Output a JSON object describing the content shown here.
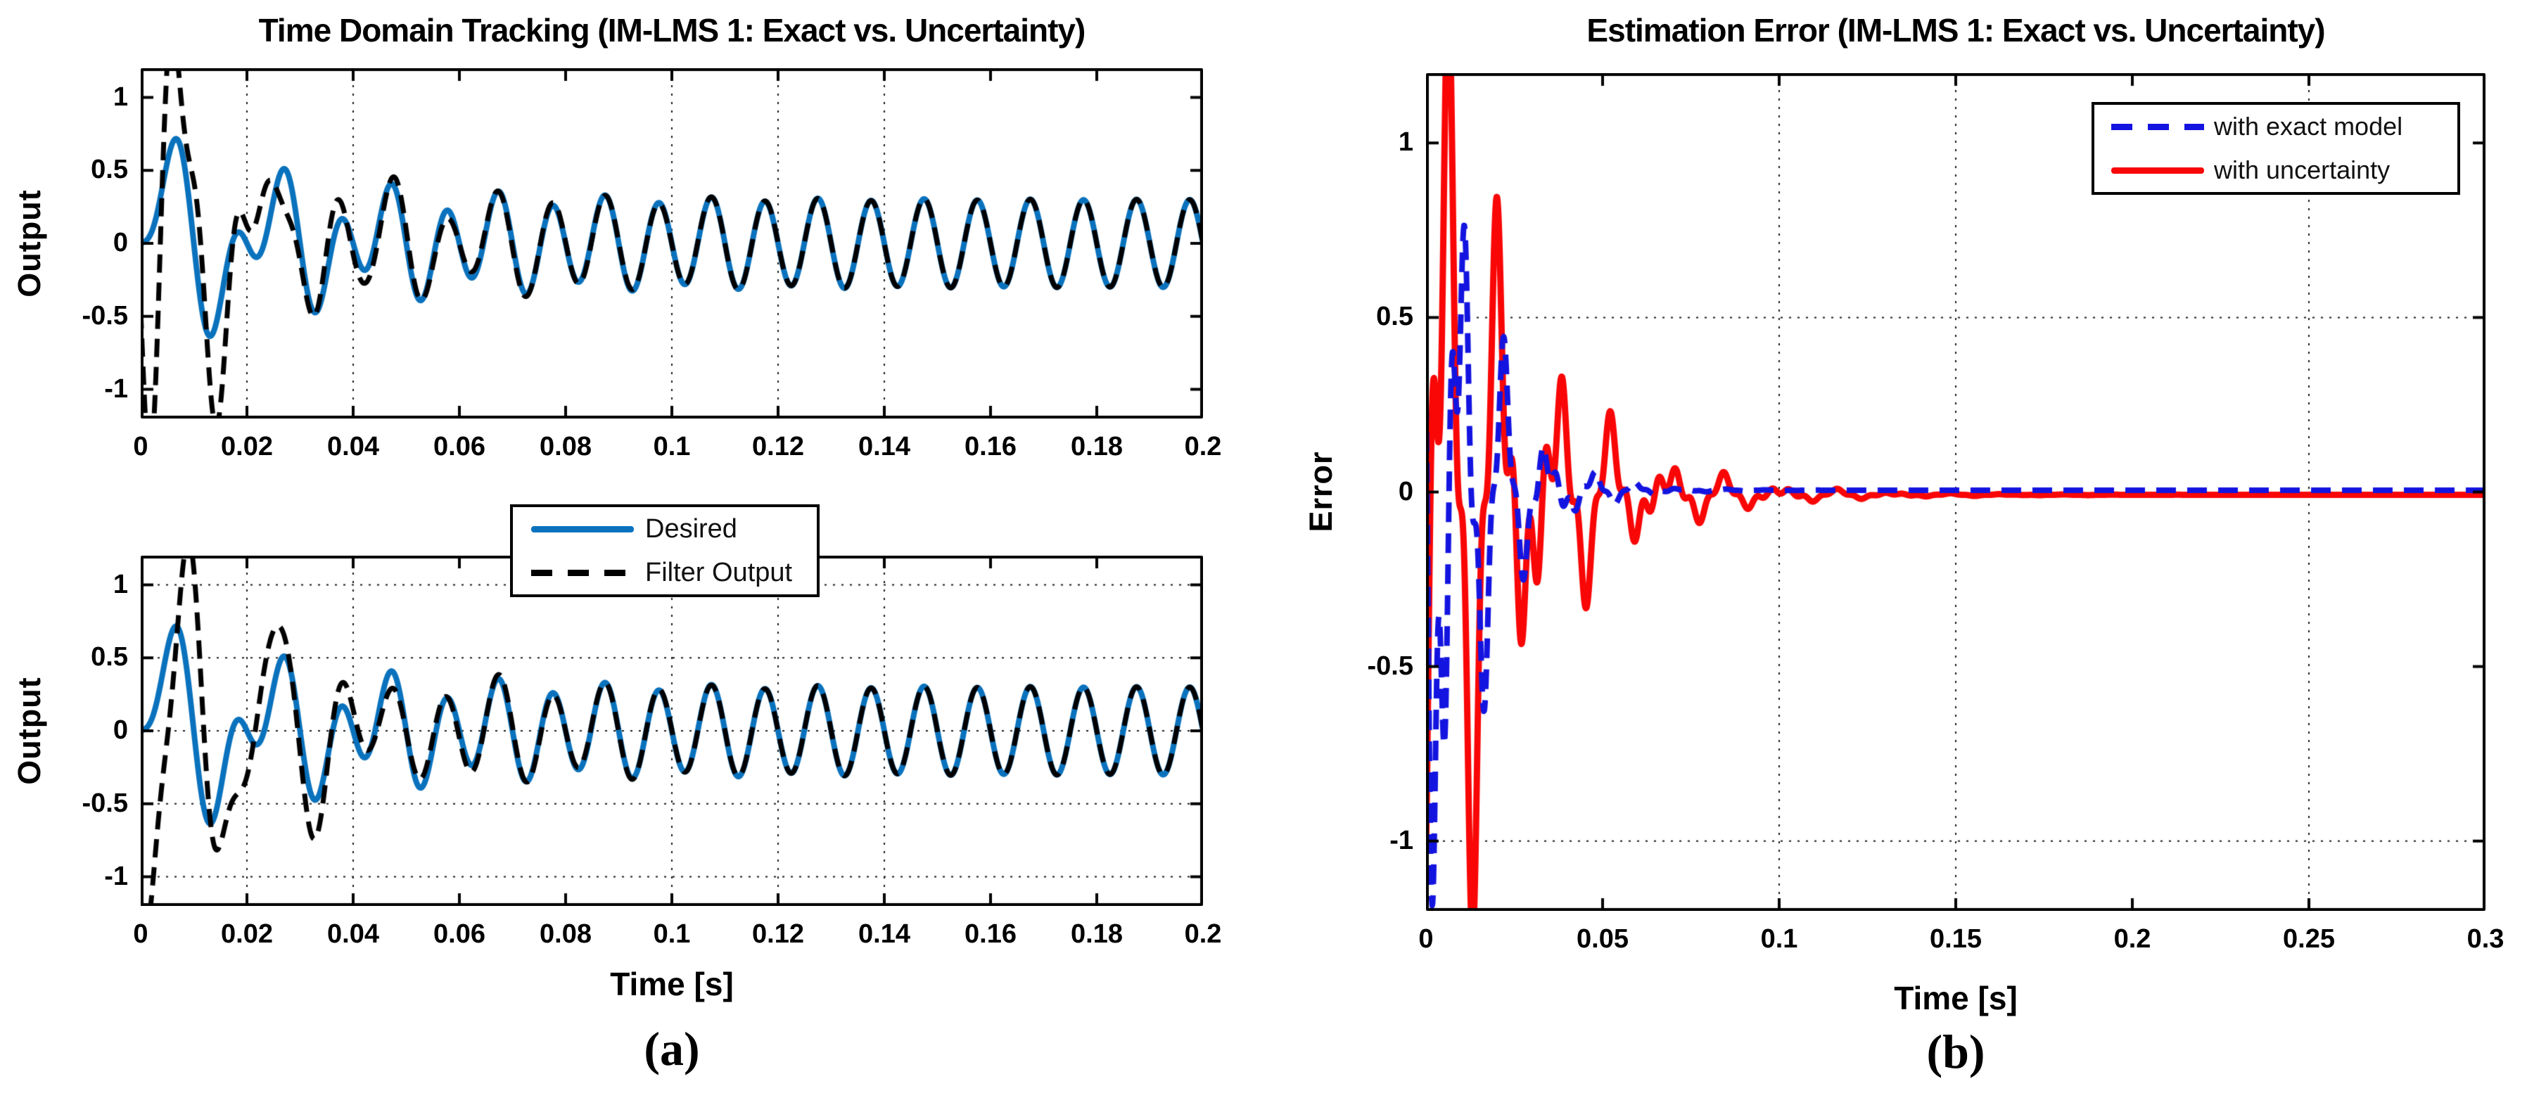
{
  "panel_a": {
    "title": "Time Domain Tracking (IM-LMS 1: Exact vs. Uncertainty)",
    "ylabel": "Output",
    "xlabel": "Time [s]",
    "caption": "(a)",
    "legend": {
      "items": [
        {
          "label": "Desired",
          "color": "#0A72BD",
          "line_style": "solid"
        },
        {
          "label": "Filter Output",
          "color": "#000000",
          "line_style": "dashed"
        }
      ]
    }
  },
  "panel_b": {
    "title": "Estimation Error (IM-LMS 1: Exact vs. Uncertainty)",
    "ylabel": "Error",
    "xlabel": "Time [s]",
    "caption": "(b)",
    "legend": {
      "items": [
        {
          "label": "with exact model",
          "color": "#1414E0",
          "line_style": "dashed"
        },
        {
          "label": "with uncertainty",
          "color": "#F90606",
          "line_style": "solid"
        }
      ]
    }
  },
  "chart_data": [
    {
      "id": "a_top",
      "type": "line",
      "title": "Time Domain Tracking (IM-LMS 1: Exact vs. Uncertainty)",
      "xlabel": "",
      "ylabel": "Output",
      "xlim": [
        0,
        0.2
      ],
      "ylim": [
        -1.2,
        1.2
      ],
      "xticks": [
        {
          "v": 0,
          "label": "0"
        },
        {
          "v": 0.02,
          "label": "0.02"
        },
        {
          "v": 0.04,
          "label": "0.04"
        },
        {
          "v": 0.06,
          "label": "0.06"
        },
        {
          "v": 0.08,
          "label": "0.08"
        },
        {
          "v": 0.1,
          "label": "0.1"
        },
        {
          "v": 0.12,
          "label": "0.12"
        },
        {
          "v": 0.14,
          "label": "0.14"
        },
        {
          "v": 0.16,
          "label": "0.16"
        },
        {
          "v": 0.18,
          "label": "0.18"
        },
        {
          "v": 0.2,
          "label": "0.2"
        }
      ],
      "yticks": [
        {
          "v": 1,
          "label": "1"
        },
        {
          "v": 0.5,
          "label": "0.5"
        },
        {
          "v": 0,
          "label": "0"
        },
        {
          "v": -0.5,
          "label": "-0.5"
        },
        {
          "v": -1,
          "label": "-1"
        }
      ],
      "grid": {
        "vertical_x": [
          0.02,
          0.04,
          0.1,
          0.12,
          0.14
        ],
        "horizontal_y": []
      },
      "legend_position": "none",
      "series": [
        {
          "name": "Desired",
          "color": "#0A72BD",
          "style": "solid",
          "steady_frequency_hz": 100,
          "steady_amplitude": 0.3,
          "key_points": [
            [
              0,
              0
            ],
            [
              0.0075,
              0.73
            ],
            [
              0.013,
              -0.65
            ],
            [
              0.018,
              0.1
            ],
            [
              0.028,
              0.54
            ],
            [
              0.033,
              -0.5
            ],
            [
              0.048,
              0.45
            ],
            [
              0.068,
              0.4
            ],
            [
              0.088,
              0.36
            ],
            [
              0.12,
              0.33
            ],
            [
              0.2,
              0.3
            ]
          ],
          "synth": {
            "type": "sum",
            "terms": [
              {
                "a": -0.3,
                "f": 100,
                "p": 0
              },
              {
                "a": 0.65,
                "f": 50,
                "p": 0,
                "tau": 0.032
              }
            ]
          }
        },
        {
          "name": "Filter Output",
          "color": "#000000",
          "style": "dashed",
          "key_points": [
            [
              0,
              0
            ],
            [
              0.008,
              0.95
            ],
            [
              0.015,
              -1.2
            ],
            [
              0.022,
              0.35
            ],
            [
              0.05,
              0.4
            ],
            [
              0.2,
              0.3
            ]
          ],
          "converges_to": "Desired by t = 0.05 s",
          "synth": {
            "type": "sum_plus",
            "base": 0,
            "terms": [
              {
                "a": 1.0,
                "f": 72,
                "p": 4.2,
                "tau": 0.02
              },
              {
                "a": 0.8,
                "f": 160,
                "p": 2.6,
                "tau": 0.013
              }
            ]
          }
        }
      ]
    },
    {
      "id": "a_bottom",
      "type": "line",
      "title": "",
      "xlabel": "Time [s]",
      "ylabel": "Output",
      "xlim": [
        0,
        0.2
      ],
      "ylim": [
        -1.2,
        1.2
      ],
      "xticks": [
        {
          "v": 0,
          "label": "0"
        },
        {
          "v": 0.02,
          "label": "0.02"
        },
        {
          "v": 0.04,
          "label": "0.04"
        },
        {
          "v": 0.06,
          "label": "0.06"
        },
        {
          "v": 0.08,
          "label": "0.08"
        },
        {
          "v": 0.1,
          "label": "0.1"
        },
        {
          "v": 0.12,
          "label": "0.12"
        },
        {
          "v": 0.14,
          "label": "0.14"
        },
        {
          "v": 0.16,
          "label": "0.16"
        },
        {
          "v": 0.18,
          "label": "0.18"
        },
        {
          "v": 0.2,
          "label": "0.2"
        }
      ],
      "yticks": [
        {
          "v": 1,
          "label": "1"
        },
        {
          "v": 0.5,
          "label": "0.5"
        },
        {
          "v": 0,
          "label": "0"
        },
        {
          "v": -0.5,
          "label": "-0.5"
        },
        {
          "v": -1,
          "label": "-1"
        }
      ],
      "grid": {
        "vertical_x": [
          0.02,
          0.04,
          0.1,
          0.12,
          0.14
        ],
        "horizontal_y": [
          1,
          0.5,
          0,
          -0.5,
          -1
        ]
      },
      "legend_position": "above-center",
      "series": [
        {
          "name": "Desired",
          "color": "#0A72BD",
          "style": "solid",
          "steady_frequency_hz": 100,
          "steady_amplitude": 0.3,
          "key_points": [
            [
              0,
              0
            ],
            [
              0.0075,
              0.73
            ],
            [
              0.013,
              -0.65
            ],
            [
              0.018,
              0.1
            ],
            [
              0.028,
              0.54
            ],
            [
              0.033,
              -0.5
            ],
            [
              0.048,
              0.45
            ],
            [
              0.068,
              0.4
            ],
            [
              0.088,
              0.36
            ],
            [
              0.12,
              0.33
            ],
            [
              0.2,
              0.3
            ]
          ],
          "synth": {
            "type": "sum",
            "terms": [
              {
                "a": -0.3,
                "f": 100,
                "p": 0
              },
              {
                "a": 0.65,
                "f": 50,
                "p": 0,
                "tau": 0.032
              }
            ]
          }
        },
        {
          "name": "Filter Output",
          "color": "#000000",
          "style": "dashed",
          "key_points": [
            [
              0,
              0
            ],
            [
              0.01,
              1.05
            ],
            [
              0.014,
              -0.75
            ],
            [
              0.033,
              0.6
            ],
            [
              0.05,
              0.4
            ],
            [
              0.2,
              0.3
            ]
          ],
          "converges_to": "Desired by t = 0.05 s",
          "synth": {
            "type": "sum_plus",
            "base": 0,
            "terms": [
              {
                "a": 1.55,
                "f": 68,
                "p": 3.58,
                "tau": 0.018
              },
              {
                "a": 0.5,
                "f": 150,
                "p": -1.63,
                "tau": 0.012
              }
            ]
          }
        }
      ]
    },
    {
      "id": "b",
      "type": "line",
      "title": "Estimation Error (IM-LMS 1: Exact vs. Uncertainty)",
      "xlabel": "Time [s]",
      "ylabel": "Error",
      "xlim": [
        0,
        0.3
      ],
      "ylim": [
        -1.2,
        1.2
      ],
      "xticks": [
        {
          "v": 0,
          "label": "0"
        },
        {
          "v": 0.05,
          "label": "0.05"
        },
        {
          "v": 0.1,
          "label": "0.1"
        },
        {
          "v": 0.15,
          "label": "0.15"
        },
        {
          "v": 0.2,
          "label": "0.2"
        },
        {
          "v": 0.25,
          "label": "0.25"
        },
        {
          "v": 0.3,
          "label": "0.3"
        }
      ],
      "yticks": [
        {
          "v": 1,
          "label": "1"
        },
        {
          "v": 0.5,
          "label": "0.5"
        },
        {
          "v": 0,
          "label": "0"
        },
        {
          "v": -0.5,
          "label": "-0.5"
        },
        {
          "v": -1,
          "label": "-1"
        }
      ],
      "grid": {
        "vertical_x": [
          0.1,
          0.15,
          0.25
        ],
        "horizontal_y": [
          0.5,
          -1
        ]
      },
      "legend_position": "top-right",
      "series": [
        {
          "name": "with uncertainty",
          "color": "#F90606",
          "style": "solid",
          "key_points": [
            [
              0,
              0
            ],
            [
              0.0075,
              0.95
            ],
            [
              0.012,
              -0.7
            ],
            [
              0.016,
              0.52
            ],
            [
              0.019,
              -0.87
            ],
            [
              0.028,
              0.53
            ],
            [
              0.035,
              -0.45
            ],
            [
              0.05,
              0.25
            ],
            [
              0.07,
              0.15
            ],
            [
              0.1,
              0.05
            ],
            [
              0.13,
              0.02
            ],
            [
              0.2,
              -0.01
            ],
            [
              0.3,
              -0.01
            ]
          ],
          "settles_near_zero_by": 0.13,
          "synth": {
            "type": "am",
            "A": 2.2,
            "tau": 0.024,
            "f1": 63,
            "p1": -0.5,
            "f2": 155,
            "p2": 1.2,
            "c": 0.55,
            "m": 0.45,
            "bias": -0.008
          }
        },
        {
          "name": "with exact model",
          "color": "#1414E0",
          "style": "dashed",
          "key_points": [
            [
              0,
              0
            ],
            [
              0.004,
              0.28
            ],
            [
              0.009,
              -0.6
            ],
            [
              0.012,
              0.6
            ],
            [
              0.02,
              -0.35
            ],
            [
              0.03,
              0.25
            ],
            [
              0.05,
              0.12
            ],
            [
              0.09,
              0.02
            ],
            [
              0.3,
              0
            ]
          ],
          "settles_near_zero_by": 0.09,
          "synth": {
            "type": "am",
            "A": 2.4,
            "tau": 0.013,
            "f1": 80,
            "p1": 3.0,
            "f2": 190,
            "p2": 0.4,
            "c": 0.6,
            "m": 0.4,
            "bias": 0.005
          }
        }
      ]
    }
  ]
}
